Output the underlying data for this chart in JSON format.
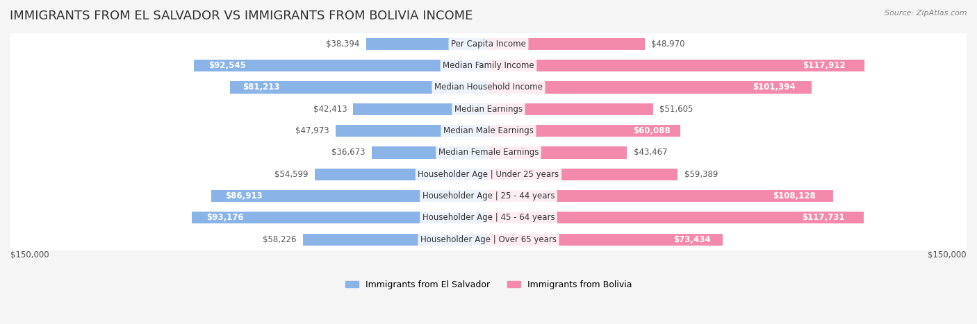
{
  "title": "IMMIGRANTS FROM EL SALVADOR VS IMMIGRANTS FROM BOLIVIA INCOME",
  "source": "Source: ZipAtlas.com",
  "categories": [
    "Per Capita Income",
    "Median Family Income",
    "Median Household Income",
    "Median Earnings",
    "Median Male Earnings",
    "Median Female Earnings",
    "Householder Age | Under 25 years",
    "Householder Age | 25 - 44 years",
    "Householder Age | 45 - 64 years",
    "Householder Age | Over 65 years"
  ],
  "el_salvador_values": [
    38394,
    92545,
    81213,
    42413,
    47973,
    36673,
    54599,
    86913,
    93176,
    58226
  ],
  "bolivia_values": [
    48970,
    117912,
    101394,
    51605,
    60088,
    43467,
    59389,
    108128,
    117731,
    73434
  ],
  "el_salvador_labels": [
    "$38,394",
    "$92,545",
    "$81,213",
    "$42,413",
    "$47,973",
    "$36,673",
    "$54,599",
    "$86,913",
    "$93,176",
    "$58,226"
  ],
  "bolivia_labels": [
    "$48,970",
    "$117,912",
    "$101,394",
    "$51,605",
    "$60,088",
    "$43,467",
    "$59,389",
    "$108,128",
    "$117,731",
    "$73,434"
  ],
  "el_salvador_color": "#8ab4e8",
  "bolivia_color": "#f48aab",
  "el_salvador_color_dark": "#6699cc",
  "bolivia_color_dark": "#e05580",
  "max_value": 150000,
  "background_color": "#f5f5f5",
  "bar_background": "#e8e8e8",
  "title_fontsize": 13,
  "label_fontsize": 8.5,
  "category_fontsize": 8.5,
  "legend_fontsize": 9,
  "axis_label": "$150,000"
}
